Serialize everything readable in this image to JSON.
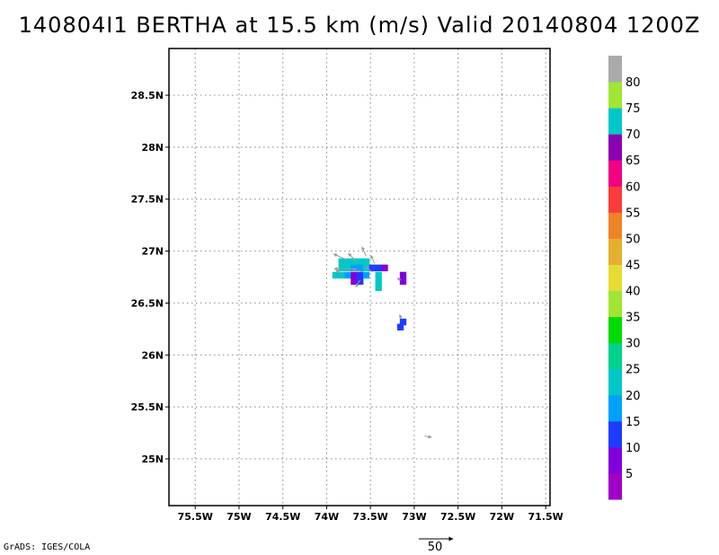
{
  "title": "140804I1 BERTHA at 15.5 km (m/s) Valid 20140804 1200Z",
  "credit": "GrADS: IGES/COLA",
  "map": {
    "lat_labels": [
      "28.5N",
      "28N",
      "27.5N",
      "27N",
      "26.5N",
      "26N",
      "25.5N",
      "25N"
    ],
    "lat_values": [
      28.5,
      28.0,
      27.5,
      27.0,
      26.5,
      26.0,
      25.5,
      25.0
    ],
    "lon_labels": [
      "75.5W",
      "75W",
      "74.5W",
      "74W",
      "73.5W",
      "73W",
      "72.5W",
      "72W",
      "71.5W"
    ],
    "lon_values": [
      -75.5,
      -75.0,
      -74.5,
      -74.0,
      -73.5,
      -73.0,
      -72.5,
      -72.0,
      -71.5
    ],
    "lat_range": [
      24.55,
      28.95
    ],
    "lon_range": [
      -75.8,
      -71.45
    ],
    "grid": true
  },
  "colorbar": {
    "labels": [
      "5",
      "10",
      "15",
      "20",
      "25",
      "30",
      "35",
      "40",
      "45",
      "50",
      "55",
      "60",
      "65",
      "70",
      "75",
      "80"
    ],
    "colors": [
      "#a000c8",
      "#8200dc",
      "#1e3cff",
      "#00a0ff",
      "#00c8c8",
      "#00d28c",
      "#00dc00",
      "#a0e632",
      "#e6dc32",
      "#e6af2d",
      "#f08228",
      "#fa3c3c",
      "#f00082",
      "#8c00b4",
      "#00c8c8",
      "#a0e632",
      "#aaaaaa"
    ]
  },
  "vector_key": {
    "label": "50"
  },
  "shading": [
    {
      "lon": -73.83,
      "lat": 26.9,
      "value": 20
    },
    {
      "lon": -73.76,
      "lat": 26.9,
      "value": 20
    },
    {
      "lon": -73.69,
      "lat": 26.9,
      "value": 20
    },
    {
      "lon": -73.62,
      "lat": 26.9,
      "value": 20
    },
    {
      "lon": -73.55,
      "lat": 26.9,
      "value": 20
    },
    {
      "lon": -73.83,
      "lat": 26.84,
      "value": 20
    },
    {
      "lon": -73.76,
      "lat": 26.84,
      "value": 20
    },
    {
      "lon": -73.69,
      "lat": 26.84,
      "value": 15
    },
    {
      "lon": -73.62,
      "lat": 26.84,
      "value": 15
    },
    {
      "lon": -73.55,
      "lat": 26.84,
      "value": 20
    },
    {
      "lon": -73.48,
      "lat": 26.84,
      "value": 10
    },
    {
      "lon": -73.41,
      "lat": 26.84,
      "value": 10
    },
    {
      "lon": -73.34,
      "lat": 26.84,
      "value": 5
    },
    {
      "lon": -73.9,
      "lat": 26.77,
      "value": 20
    },
    {
      "lon": -73.83,
      "lat": 26.77,
      "value": 20
    },
    {
      "lon": -73.76,
      "lat": 26.77,
      "value": 15
    },
    {
      "lon": -73.69,
      "lat": 26.77,
      "value": 5
    },
    {
      "lon": -73.62,
      "lat": 26.77,
      "value": 10
    },
    {
      "lon": -73.55,
      "lat": 26.77,
      "value": 15
    },
    {
      "lon": -73.41,
      "lat": 26.77,
      "value": 20
    },
    {
      "lon": -73.13,
      "lat": 26.77,
      "value": 5
    },
    {
      "lon": -73.69,
      "lat": 26.71,
      "value": 5
    },
    {
      "lon": -73.62,
      "lat": 26.71,
      "value": 10
    },
    {
      "lon": -73.41,
      "lat": 26.71,
      "value": 20
    },
    {
      "lon": -73.13,
      "lat": 26.71,
      "value": 5
    },
    {
      "lon": -73.41,
      "lat": 26.65,
      "value": 20
    },
    {
      "lon": -73.13,
      "lat": 26.32,
      "value": 10
    },
    {
      "lon": -73.16,
      "lat": 26.27,
      "value": 10
    }
  ],
  "vectors": [
    {
      "lon": -73.78,
      "lat": 26.92,
      "u": -18,
      "v": 8
    },
    {
      "lon": -73.66,
      "lat": 26.9,
      "u": -12,
      "v": 12
    },
    {
      "lon": -73.55,
      "lat": 26.95,
      "u": -6,
      "v": 14
    },
    {
      "lon": -73.45,
      "lat": 26.88,
      "u": -6,
      "v": 12
    },
    {
      "lon": -73.48,
      "lat": 26.8,
      "u": -10,
      "v": 8
    },
    {
      "lon": -73.68,
      "lat": 26.83,
      "u": -30,
      "v": 0
    },
    {
      "lon": -73.58,
      "lat": 26.8,
      "u": -16,
      "v": 4
    },
    {
      "lon": -73.62,
      "lat": 26.72,
      "u": -6,
      "v": -10
    },
    {
      "lon": -73.82,
      "lat": 26.78,
      "u": -10,
      "v": 6
    },
    {
      "lon": -73.15,
      "lat": 26.72,
      "u": -6,
      "v": 3
    },
    {
      "lon": -73.15,
      "lat": 26.35,
      "u": -2,
      "v": 6
    },
    {
      "lon": -72.88,
      "lat": 25.22,
      "u": 10,
      "v": -2
    }
  ]
}
